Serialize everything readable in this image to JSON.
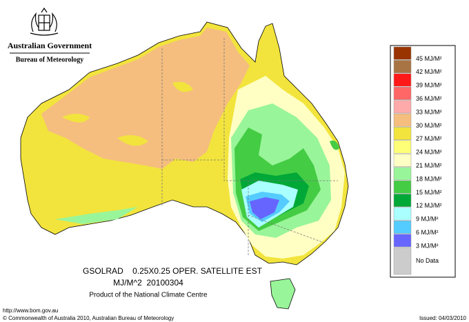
{
  "header": {
    "title": "Australian Government",
    "subtitle": "Bureau of Meteorology"
  },
  "map": {
    "caption_line1": "GSOLRAD    0.25X0.25 OPER. SATELLITE EST",
    "caption_line2": "MJ/M^2  20100304",
    "caption_line3": "Product of the National Climate Centre"
  },
  "legend": {
    "items": [
      {
        "label": "45 MJ/M²",
        "color": "#993300"
      },
      {
        "label": "42 MJ/M²",
        "color": "#a87444"
      },
      {
        "label": "39 MJ/M²",
        "color": "#ff1a1a"
      },
      {
        "label": "36 MJ/M²",
        "color": "#ff6666"
      },
      {
        "label": "33 MJ/M²",
        "color": "#ffaaaa"
      },
      {
        "label": "30 MJ/M²",
        "color": "#f5be7f"
      },
      {
        "label": "27 MJ/M²",
        "color": "#f2e43c"
      },
      {
        "label": "24 MJ/M²",
        "color": "#ffff77"
      },
      {
        "label": "21 MJ/M²",
        "color": "#ffffc4"
      },
      {
        "label": "18 MJ/M²",
        "color": "#99f599"
      },
      {
        "label": "15 MJ/M²",
        "color": "#44cc44"
      },
      {
        "label": "12 MJ/M²",
        "color": "#00a838"
      },
      {
        "label": "9 MJ/M²",
        "color": "#aaffff"
      },
      {
        "label": "6 MJ/M²",
        "color": "#55ccff"
      },
      {
        "label": "3 MJ/M²",
        "color": "#6666ff"
      },
      {
        "label": "No Data",
        "color": "#cccccc"
      }
    ]
  },
  "footer": {
    "url": "http://www.bom.gov.au",
    "copyright": "© Commonwealth of Australia 2010, Australian Bureau of Meteorology",
    "issued": "Issued: 04/03/2010"
  }
}
